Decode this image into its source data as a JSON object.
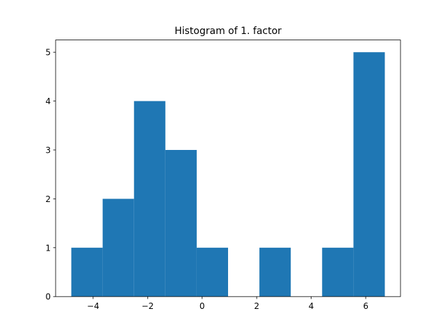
{
  "chart_data": {
    "type": "bar",
    "title": "Histogram of 1. factor",
    "xlabel": "",
    "ylabel": "",
    "bin_edges": [
      -4.8,
      -3.65,
      -2.5,
      -1.35,
      -0.2,
      0.95,
      2.1,
      3.25,
      4.4,
      5.55,
      6.7
    ],
    "values": [
      1,
      2,
      4,
      3,
      1,
      0,
      1,
      0,
      1,
      5
    ],
    "xlim": [
      -5.375,
      7.275
    ],
    "ylim": [
      0,
      5.25
    ],
    "x_ticks": [
      -4,
      -2,
      0,
      2,
      4,
      6
    ],
    "x_tick_labels": [
      "−4",
      "−2",
      "0",
      "2",
      "4",
      "6"
    ],
    "y_ticks": [
      0,
      1,
      2,
      3,
      4,
      5
    ],
    "y_tick_labels": [
      "0",
      "1",
      "2",
      "3",
      "4",
      "5"
    ],
    "bar_color": "#1f77b4",
    "grid": false
  }
}
